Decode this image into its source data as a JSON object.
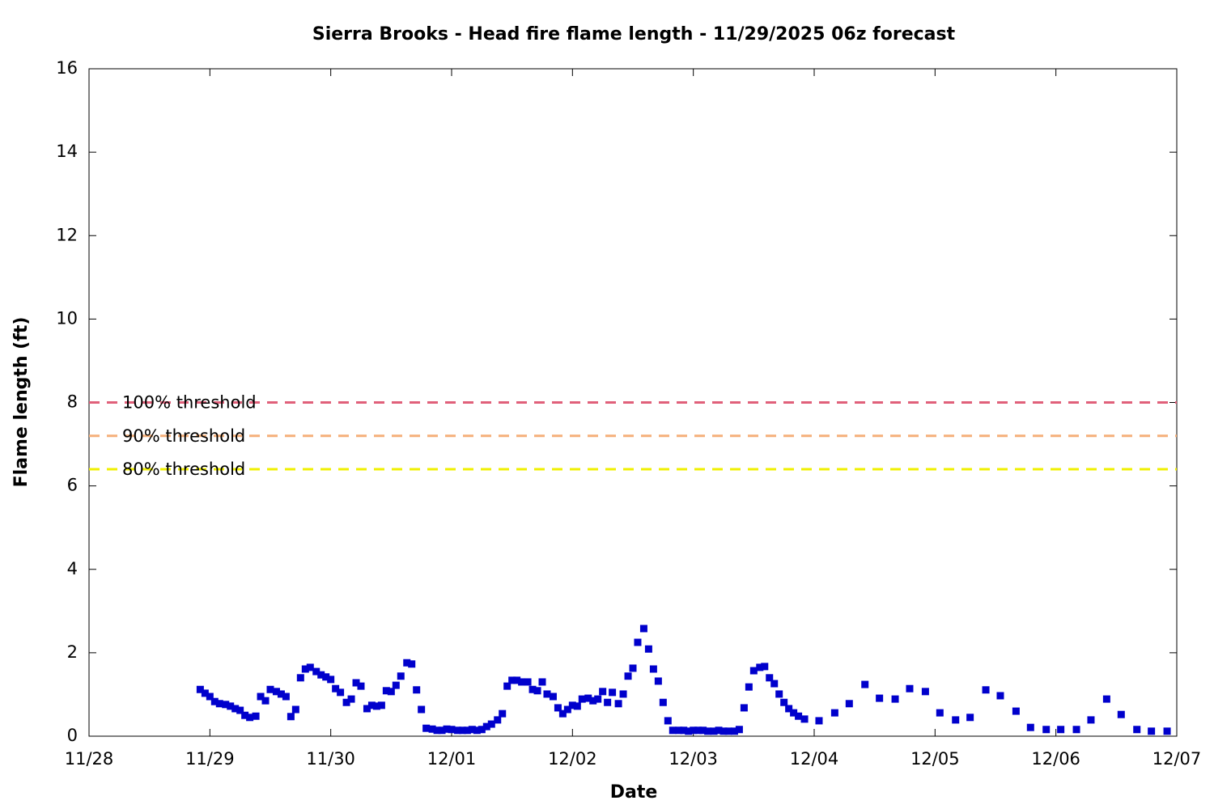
{
  "chart_data": {
    "type": "scatter",
    "title": "Sierra Brooks - Head fire flame length - 11/29/2025 06z forecast",
    "x_label": "Date",
    "y_label": "Flame length (ft)",
    "xlim": [
      0,
      9
    ],
    "xticks": [
      {
        "value": 0,
        "label": "11/28"
      },
      {
        "value": 1,
        "label": "11/29"
      },
      {
        "value": 2,
        "label": "11/30"
      },
      {
        "value": 3,
        "label": "12/01"
      },
      {
        "value": 4,
        "label": "12/02"
      },
      {
        "value": 5,
        "label": "12/03"
      },
      {
        "value": 6,
        "label": "12/04"
      },
      {
        "value": 7,
        "label": "12/05"
      },
      {
        "value": 8,
        "label": "12/06"
      },
      {
        "value": 9,
        "label": "12/07"
      }
    ],
    "ylim": [
      0,
      16
    ],
    "yticks": [
      0,
      2,
      4,
      6,
      8,
      10,
      12,
      14,
      16
    ],
    "thresholds": [
      {
        "label": "100% threshold",
        "value": 8,
        "color": "#e0607a"
      },
      {
        "label": "90% threshold",
        "value": 7.2,
        "color": "#f5b07a"
      },
      {
        "label": "80% threshold",
        "value": 6.4,
        "color": "#f0f000"
      }
    ],
    "color": "#0000cc",
    "x": [
      0.92,
      0.96,
      1.0,
      1.04,
      1.08,
      1.13,
      1.17,
      1.21,
      1.25,
      1.29,
      1.33,
      1.38,
      1.42,
      1.46,
      1.5,
      1.55,
      1.59,
      1.63,
      1.67,
      1.71,
      1.75,
      1.79,
      1.83,
      1.88,
      1.92,
      1.96,
      2.0,
      2.04,
      2.08,
      2.13,
      2.17,
      2.21,
      2.25,
      2.3,
      2.34,
      2.38,
      2.42,
      2.46,
      2.5,
      2.54,
      2.58,
      2.63,
      2.67,
      2.71,
      2.75,
      2.79,
      2.84,
      2.88,
      2.92,
      2.96,
      3.0,
      3.05,
      3.09,
      3.13,
      3.17,
      3.21,
      3.25,
      3.29,
      3.33,
      3.38,
      3.42,
      3.46,
      3.5,
      3.54,
      3.58,
      3.63,
      3.67,
      3.71,
      3.75,
      3.79,
      3.84,
      3.88,
      3.92,
      3.96,
      4.0,
      4.04,
      4.08,
      4.13,
      4.17,
      4.21,
      4.25,
      4.29,
      4.33,
      4.38,
      4.42,
      4.46,
      4.5,
      4.54,
      4.59,
      4.63,
      4.67,
      4.71,
      4.75,
      4.79,
      4.83,
      4.88,
      4.92,
      4.96,
      5.0,
      5.04,
      5.08,
      5.12,
      5.17,
      5.21,
      5.25,
      5.29,
      5.34,
      5.38,
      5.42,
      5.46,
      5.5,
      5.55,
      5.59,
      5.63,
      5.67,
      5.71,
      5.75,
      5.79,
      5.83,
      5.87,
      5.92,
      6.04,
      6.17,
      6.29,
      6.42,
      6.54,
      6.67,
      6.79,
      6.92,
      7.04,
      7.17,
      7.29,
      7.42,
      7.54,
      7.67,
      7.79,
      7.92,
      8.04,
      8.17,
      8.29,
      8.42,
      8.54,
      8.67,
      8.79,
      8.92
    ],
    "values": [
      1.12,
      1.03,
      0.95,
      0.83,
      0.78,
      0.76,
      0.72,
      0.66,
      0.62,
      0.5,
      0.45,
      0.48,
      0.95,
      0.85,
      1.12,
      1.07,
      1.01,
      0.95,
      0.47,
      0.64,
      1.4,
      1.61,
      1.65,
      1.55,
      1.47,
      1.42,
      1.36,
      1.14,
      1.05,
      0.81,
      0.89,
      1.28,
      1.2,
      0.66,
      0.74,
      0.72,
      0.74,
      1.09,
      1.07,
      1.22,
      1.44,
      1.76,
      1.73,
      1.11,
      0.64,
      0.19,
      0.17,
      0.14,
      0.14,
      0.17,
      0.16,
      0.14,
      0.14,
      0.14,
      0.16,
      0.14,
      0.16,
      0.23,
      0.29,
      0.39,
      0.54,
      1.2,
      1.34,
      1.34,
      1.3,
      1.3,
      1.12,
      1.09,
      1.3,
      1.01,
      0.95,
      0.68,
      0.54,
      0.64,
      0.74,
      0.72,
      0.89,
      0.91,
      0.85,
      0.89,
      1.07,
      0.81,
      1.05,
      0.78,
      1.01,
      1.44,
      1.63,
      2.25,
      2.58,
      2.09,
      1.61,
      1.32,
      0.81,
      0.37,
      0.14,
      0.14,
      0.14,
      0.12,
      0.14,
      0.14,
      0.14,
      0.12,
      0.12,
      0.14,
      0.12,
      0.12,
      0.12,
      0.16,
      0.68,
      1.18,
      1.57,
      1.65,
      1.67,
      1.4,
      1.26,
      1.01,
      0.81,
      0.66,
      0.56,
      0.48,
      0.41,
      0.37,
      0.56,
      0.78,
      1.24,
      0.91,
      0.89,
      1.14,
      1.07,
      0.56,
      0.39,
      0.45,
      1.11,
      0.97,
      0.6,
      0.21,
      0.16,
      0.16,
      0.16,
      0.39,
      0.89,
      0.52,
      0.16,
      0.12,
      0.12
    ]
  }
}
